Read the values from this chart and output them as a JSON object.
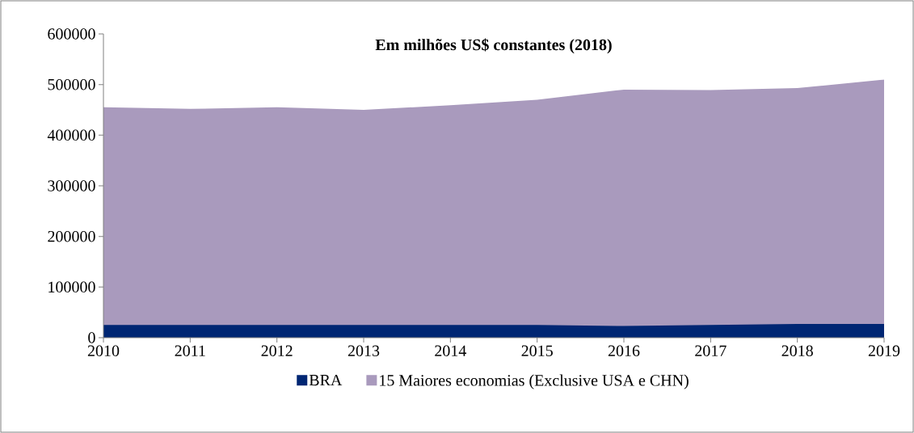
{
  "chart_data": {
    "type": "area",
    "title": "Em milhões US$ constantes (2018)",
    "x": [
      2010,
      2011,
      2012,
      2013,
      2014,
      2015,
      2016,
      2017,
      2018,
      2019
    ],
    "xlim": [
      2010,
      2019
    ],
    "xticks": [
      2010,
      2011,
      2012,
      2013,
      2014,
      2015,
      2016,
      2017,
      2018,
      2019
    ],
    "ylim": [
      0,
      600000
    ],
    "yticks": [
      0,
      100000,
      200000,
      300000,
      400000,
      500000,
      600000
    ],
    "series": [
      {
        "name": "BRA",
        "color": "#002673",
        "values": [
          25000,
          25000,
          25000,
          25000,
          25000,
          25000,
          23000,
          25000,
          27000,
          27000
        ]
      },
      {
        "name": "15 Maiores economias (Exclusive USA e CHN)",
        "color": "#a99abd",
        "values": [
          455000,
          452000,
          455000,
          450000,
          459000,
          470000,
          490000,
          489000,
          493000,
          510000
        ]
      }
    ],
    "legend": "bottom"
  }
}
